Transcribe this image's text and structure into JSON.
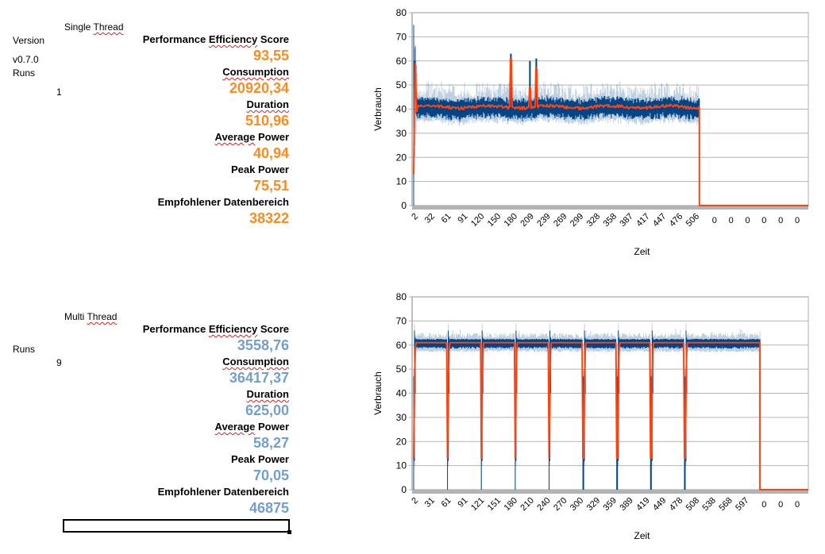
{
  "single": {
    "title": "Single Thread",
    "version_label": "Version",
    "version_value": "v0.7.0",
    "runs_label": "Runs",
    "runs_value": "1",
    "metrics": [
      {
        "label": "Performance Efficiency Score",
        "value": "93,55"
      },
      {
        "label": "Consumption",
        "value": "20920,34"
      },
      {
        "label": "Duration",
        "value": "510,96"
      },
      {
        "label": "Average Power",
        "value": "40,94"
      },
      {
        "label": "Peak Power",
        "value": "75,51"
      },
      {
        "label": "Empfohlener Datenbereich",
        "value": "38322"
      }
    ],
    "value_color": "#ff8a1e"
  },
  "multi": {
    "title": "Multi Thread",
    "runs_label": "Runs",
    "runs_value": "9",
    "metrics": [
      {
        "label": "Performance Efficiency Score",
        "value": "3558,76"
      },
      {
        "label": "Consumption",
        "value": "36417,37"
      },
      {
        "label": "Duration",
        "value": "625,00"
      },
      {
        "label": "Average Power",
        "value": "58,27"
      },
      {
        "label": "Peak Power",
        "value": "70,05"
      },
      {
        "label": "Empfohlener Datenbereich",
        "value": "46875"
      }
    ],
    "value_color": "#729fcf"
  },
  "chart_data": [
    {
      "type": "line",
      "title": "",
      "xlabel": "Zeit",
      "ylabel": "Verbrauch",
      "ylim": [
        0,
        80
      ],
      "yticks": [
        0,
        10,
        20,
        30,
        40,
        50,
        60,
        70,
        80
      ],
      "grid": true,
      "legend": "none",
      "xtick_labels": [
        "2",
        "32",
        "61",
        "91",
        "120",
        "150",
        "180",
        "209",
        "239",
        "269",
        "299",
        "328",
        "358",
        "387",
        "417",
        "447",
        "476",
        "506",
        "0",
        "0",
        "0",
        "0",
        "0",
        "0"
      ],
      "series_colors": {
        "raw": "#004586",
        "smoothed": "#ff420e"
      },
      "summary": {
        "data_end_fraction": 0.725,
        "baseline_level": 40.9,
        "raw_noise_band": [
          36,
          50
        ],
        "startup_spike": {
          "raw_max": 75,
          "raw_min": 0,
          "smoothed_max": 59,
          "smoothed_min": 13
        },
        "spikes": [
          {
            "position_fraction": 0.34,
            "raw": 63,
            "smoothed": 61
          },
          {
            "position_fraction": 0.406,
            "raw": 60,
            "smoothed": 49
          },
          {
            "position_fraction": 0.43,
            "raw": 61,
            "smoothed": 57
          }
        ],
        "after_end_value": 0
      }
    },
    {
      "type": "line",
      "title": "",
      "xlabel": "Zeit",
      "ylabel": "Verbrauch",
      "ylim": [
        0,
        80
      ],
      "yticks": [
        0,
        10,
        20,
        30,
        40,
        50,
        60,
        70,
        80
      ],
      "grid": true,
      "legend": "none",
      "xtick_labels": [
        "2",
        "31",
        "61",
        "91",
        "121",
        "151",
        "180",
        "210",
        "240",
        "270",
        "300",
        "329",
        "359",
        "389",
        "419",
        "449",
        "478",
        "508",
        "538",
        "568",
        "597",
        "0",
        "0",
        "0"
      ],
      "series_colors": {
        "raw": "#004586",
        "smoothed": "#ff420e"
      },
      "summary": {
        "runs": 9,
        "data_end_fraction": 0.878,
        "run_level": 61,
        "raw_noise_band": [
          58,
          63
        ],
        "dip_min_raw": 0,
        "dip_min_smoothed": 13,
        "run_start_fractions": [
          0.0,
          0.098,
          0.196,
          0.294,
          0.392,
          0.49,
          0.588,
          0.686,
          0.784
        ],
        "after_end_value": 0
      }
    }
  ]
}
